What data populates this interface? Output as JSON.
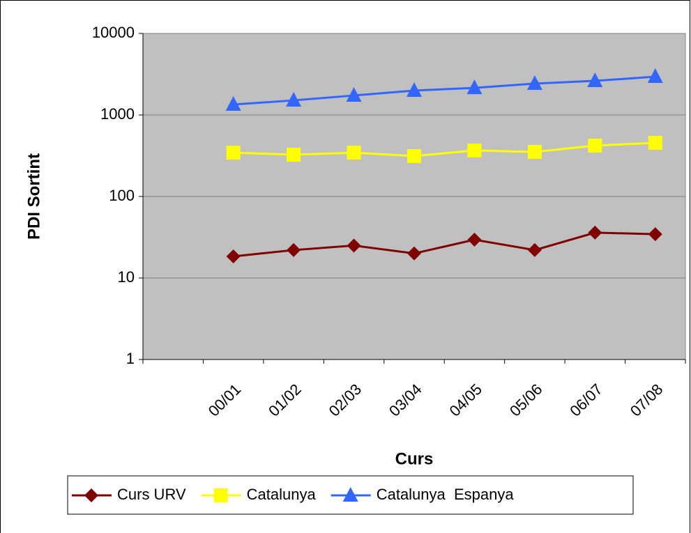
{
  "chart_data": {
    "type": "line",
    "y_label": "PDI Sortint",
    "x_label": "Curs",
    "log_scale": true,
    "grid": true,
    "legend": "bottom",
    "categories": [
      null,
      "00/01",
      "01/02",
      "02/03",
      "03/04",
      "04/05",
      "05/06",
      "06/07",
      "07/08"
    ],
    "ylim": [
      1,
      10000
    ],
    "yticks": [
      1,
      10,
      100,
      1000,
      10000
    ],
    "series": [
      {
        "name": "Curs URV",
        "color": "#800000",
        "marker": "diamond",
        "values": [
          null,
          18.4,
          22,
          25,
          20,
          29.5,
          22,
          36,
          34.5
        ]
      },
      {
        "name": "Catalunya",
        "color": "#ffff00",
        "marker": "square",
        "values": [
          null,
          345,
          326,
          345,
          313,
          367,
          352,
          421,
          455
        ]
      },
      {
        "name": "Catalunya  Espanya",
        "color": "#3366ff",
        "marker": "triangle",
        "values": [
          null,
          1343,
          1510,
          1733,
          1990,
          2150,
          2425,
          2620,
          2950
        ]
      }
    ]
  }
}
